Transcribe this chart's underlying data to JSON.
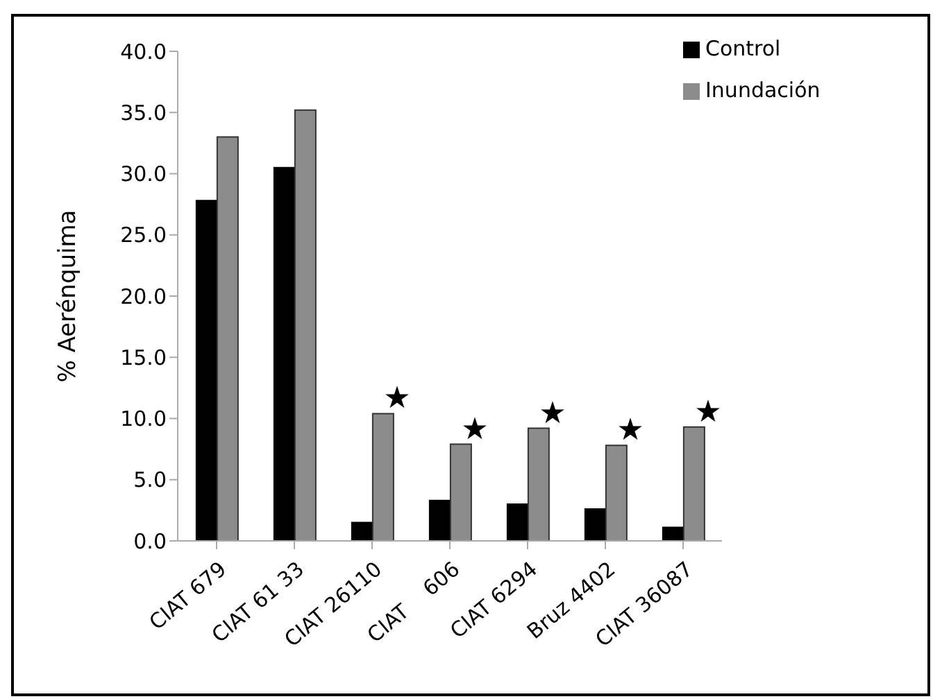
{
  "chart_data": {
    "type": "bar",
    "ylabel": "% Aerénquima",
    "categories": [
      "CIAT 679",
      "CIAT 61 33",
      "CIAT 26110",
      "CIAT    606",
      "CIAT 6294",
      "Bruz 4402",
      "CIAT 36087"
    ],
    "series": [
      {
        "name": "Control",
        "color": "#000000",
        "values": [
          27.8,
          30.5,
          1.5,
          3.3,
          3.0,
          2.6,
          1.1
        ]
      },
      {
        "name": "Inundación",
        "color": "#8c8c8c",
        "values": [
          33.0,
          35.2,
          10.4,
          7.9,
          9.2,
          7.8,
          9.3
        ]
      }
    ],
    "ylim": [
      0,
      40
    ],
    "yticks": [
      {
        "value": 0,
        "label": "0.0"
      },
      {
        "value": 5,
        "label": "5.0"
      },
      {
        "value": 10,
        "label": "10.0"
      },
      {
        "value": 15,
        "label": "15.0"
      },
      {
        "value": 20,
        "label": "20.0"
      },
      {
        "value": 25,
        "label": "25.0"
      },
      {
        "value": 30,
        "label": "30.0"
      },
      {
        "value": 35,
        "label": "35.0"
      },
      {
        "value": 40,
        "label": "40.0"
      }
    ],
    "annotations": [
      {
        "text": "★",
        "x": "CIAT 26110",
        "y": 10.4
      },
      {
        "text": "★",
        "x": "CIAT    606",
        "y": 7.9
      },
      {
        "text": "★",
        "x": "CIAT 6294",
        "y": 9.2
      },
      {
        "text": "★",
        "x": "Bruz 4402",
        "y": 7.8
      },
      {
        "text": "★",
        "x": "CIAT 36087",
        "y": 9.3
      }
    ],
    "legend": "top right",
    "grid": false
  }
}
